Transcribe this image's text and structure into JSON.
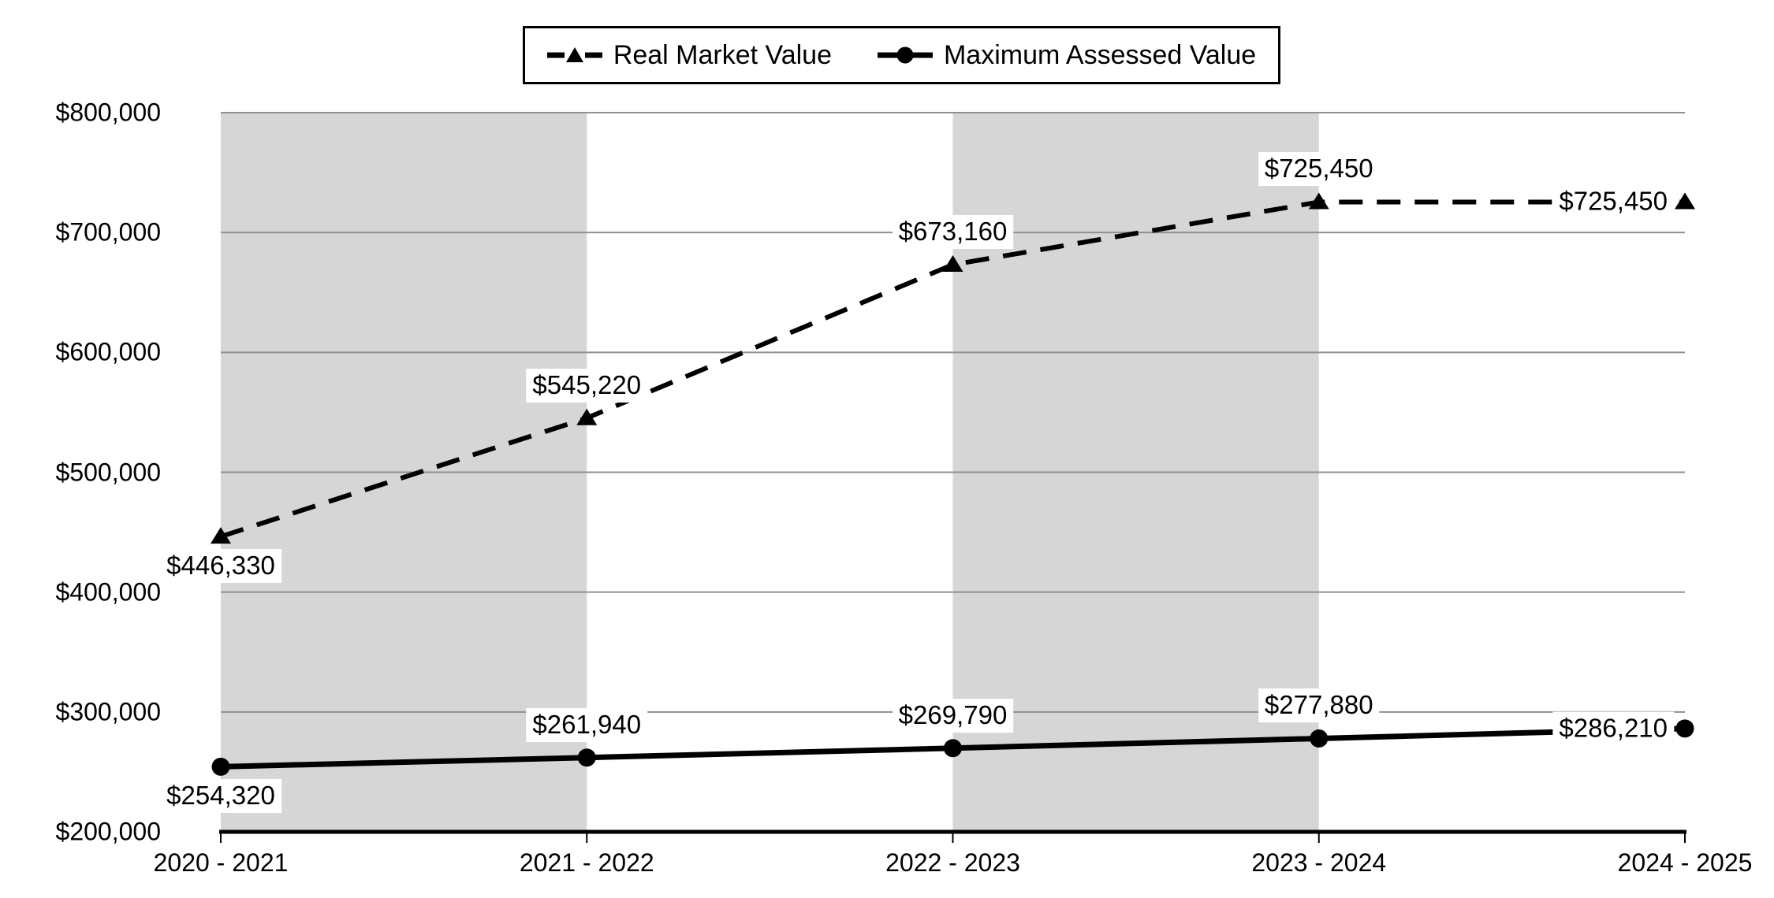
{
  "chart_data": {
    "type": "line",
    "title": "",
    "categories": [
      "2020 - 2021",
      "2021 - 2022",
      "2022 - 2023",
      "2023 - 2024",
      "2024 - 2025"
    ],
    "series": [
      {
        "name": "Real Market Value",
        "line_style": "dashed",
        "marker": "triangle",
        "color": "#000000",
        "values": [
          446330,
          545220,
          673160,
          725450,
          725450
        ],
        "data_labels": [
          "$446,330",
          "$545,220",
          "$673,160",
          "$725,450",
          "$725,450"
        ],
        "label_positions": [
          "below",
          "above",
          "above",
          "above",
          "left"
        ]
      },
      {
        "name": "Maximum Assessed Value",
        "line_style": "solid",
        "marker": "circle",
        "color": "#000000",
        "values": [
          254320,
          261940,
          269790,
          277880,
          286210
        ],
        "data_labels": [
          "$254,320",
          "$261,940",
          "$269,790",
          "$277,880",
          "$286,210"
        ],
        "label_positions": [
          "below",
          "above",
          "above",
          "above",
          "left"
        ]
      }
    ],
    "xlabel": "",
    "ylabel": "",
    "ylim": [
      200000,
      800000
    ],
    "ytick_step": 100000,
    "ytick_labels": [
      "$200,000",
      "$300,000",
      "$400,000",
      "$500,000",
      "$600,000",
      "$700,000",
      "$800,000"
    ],
    "grid": "horizontal",
    "legend_position": "top-center",
    "plot_bands": {
      "color": "#d6d6d6",
      "spans": [
        [
          0,
          1
        ],
        [
          2,
          3
        ]
      ]
    },
    "colors": {
      "grid": "#909090",
      "axis": "#000000",
      "series": "#000000",
      "label_bg": "#ffffff",
      "background": "#ffffff"
    }
  }
}
